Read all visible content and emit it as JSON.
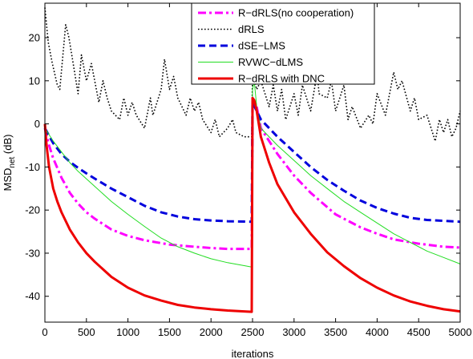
{
  "chart_data": {
    "type": "line",
    "xlabel": "iterations",
    "ylabel_main": "MSD",
    "ylabel_sub": "net",
    "ylabel_unit": " (dB)",
    "xlim": [
      0,
      5000
    ],
    "ylim": [
      -46,
      28
    ],
    "xticks": [
      0,
      500,
      1000,
      1500,
      2000,
      2500,
      3000,
      3500,
      4000,
      4500,
      5000
    ],
    "yticks": [
      -40,
      -30,
      -20,
      -10,
      0,
      10,
      20
    ],
    "grid": false,
    "legend_position": "top-center",
    "series": [
      {
        "name": "R−dRLS(no cooperation)",
        "color": "#ff00ff",
        "style": "dashdot",
        "x": [
          0,
          50,
          100,
          200,
          300,
          400,
          500,
          600,
          800,
          1000,
          1200,
          1500,
          1800,
          2000,
          2200,
          2490,
          2500,
          2550,
          2600,
          2800,
          3000,
          3200,
          3500,
          3800,
          4000,
          4200,
          4500,
          4800,
          5000
        ],
        "values": [
          -1,
          -5,
          -8,
          -12.5,
          -16,
          -18.5,
          -20.5,
          -22,
          -24.5,
          -26,
          -27,
          -28,
          -28.5,
          -28.8,
          -29,
          -29,
          5,
          4,
          -1,
          -7,
          -12,
          -16,
          -21,
          -24,
          -25.5,
          -26.8,
          -27.8,
          -28.5,
          -28.7
        ]
      },
      {
        "name": "dRLS",
        "color": "#000000",
        "style": "dotted",
        "x": [
          0,
          40,
          90,
          150,
          180,
          250,
          290,
          400,
          440,
          500,
          560,
          650,
          700,
          750,
          800,
          900,
          950,
          1000,
          1050,
          1100,
          1200,
          1270,
          1300,
          1400,
          1440,
          1500,
          1550,
          1600,
          1700,
          1750,
          1800,
          1850,
          1900,
          2000,
          2050,
          2100,
          2200,
          2260,
          2300,
          2400,
          2490,
          2500,
          2550,
          2600,
          2700,
          2750,
          2800,
          2850,
          2900,
          3000,
          3050,
          3100,
          3200,
          3280,
          3300,
          3400,
          3450,
          3500,
          3600,
          3650,
          3700,
          3800,
          3900,
          3950,
          4000,
          4100,
          4200,
          4250,
          4300,
          4400,
          4450,
          4500,
          4600,
          4700,
          4750,
          4800,
          4850,
          4900,
          4950,
          5000
        ],
        "values": [
          27,
          19,
          14,
          9,
          8,
          23,
          20,
          7,
          16,
          10,
          14,
          5,
          10,
          6,
          3,
          1,
          6,
          2,
          5,
          2,
          -1,
          6,
          2,
          8,
          15,
          8,
          11,
          6,
          2,
          6,
          3,
          5,
          1,
          -2,
          1,
          -3,
          -1,
          1,
          -2,
          -3,
          -3,
          12,
          8,
          10,
          4,
          9,
          3,
          8,
          1,
          7,
          2,
          9,
          3,
          12,
          7,
          6,
          10,
          3,
          9,
          1,
          4,
          -1,
          2,
          0,
          7,
          2,
          12,
          8,
          10,
          3,
          6,
          1,
          2,
          -4,
          1,
          -2,
          1,
          -3,
          -1,
          3
        ]
      },
      {
        "name": "dSE−LMS",
        "color": "#0000dd",
        "style": "dashed",
        "x": [
          0,
          100,
          200,
          300,
          400,
          500,
          600,
          800,
          1000,
          1200,
          1400,
          1600,
          1800,
          2000,
          2200,
          2490,
          2500,
          2550,
          2600,
          2800,
          3000,
          3200,
          3400,
          3600,
          3800,
          4000,
          4200,
          4400,
          4600,
          4800,
          5000
        ],
        "values": [
          -1,
          -4.5,
          -7,
          -8.8,
          -10.2,
          -11.5,
          -12.7,
          -15,
          -17,
          -19,
          -20.5,
          -21.5,
          -22.1,
          -22.4,
          -22.6,
          -22.7,
          5,
          3,
          1,
          -3,
          -6.5,
          -10,
          -13,
          -15.5,
          -17.8,
          -19.5,
          -20.8,
          -21.8,
          -22.3,
          -22.5,
          -22.7
        ]
      },
      {
        "name": "RVWC−dLMS",
        "color": "#22dd22",
        "style": "solid-thin",
        "x": [
          0,
          100,
          200,
          300,
          400,
          600,
          800,
          1000,
          1200,
          1400,
          1600,
          1800,
          2000,
          2200,
          2400,
          2490,
          2500,
          2520,
          2550,
          2600,
          2800,
          3000,
          3200,
          3400,
          3600,
          3800,
          4000,
          4200,
          4400,
          4600,
          4800,
          5000
        ],
        "values": [
          -1,
          -4,
          -6.5,
          -9,
          -11,
          -14.5,
          -18,
          -21,
          -23.8,
          -26.5,
          -28.5,
          -30,
          -31.3,
          -32.2,
          -32.9,
          -33.2,
          8,
          10,
          4,
          -1,
          -5,
          -8.5,
          -12,
          -15,
          -18,
          -20.5,
          -23,
          -25.5,
          -27.5,
          -29.5,
          -31,
          -32.5
        ]
      },
      {
        "name": "R−dRLS with DNC",
        "color": "#ee0000",
        "style": "solid-thick",
        "x": [
          0,
          20,
          50,
          100,
          150,
          200,
          300,
          400,
          500,
          600,
          800,
          1000,
          1200,
          1400,
          1600,
          1800,
          2000,
          2200,
          2400,
          2490,
          2500,
          2520,
          2550,
          2600,
          2700,
          2800,
          3000,
          3200,
          3400,
          3600,
          3800,
          4000,
          4200,
          4400,
          4600,
          4800,
          5000
        ],
        "values": [
          0,
          -5,
          -10,
          -15,
          -18,
          -20.5,
          -24.5,
          -27.5,
          -30,
          -32,
          -35.5,
          -38,
          -39.8,
          -41,
          -42,
          -42.6,
          -43,
          -43.3,
          -43.5,
          -43.6,
          6,
          5.5,
          3,
          -3,
          -9,
          -14,
          -20.5,
          -25.5,
          -29.8,
          -33,
          -35.8,
          -38,
          -39.8,
          -41.2,
          -42.2,
          -43,
          -43.5
        ]
      }
    ]
  }
}
